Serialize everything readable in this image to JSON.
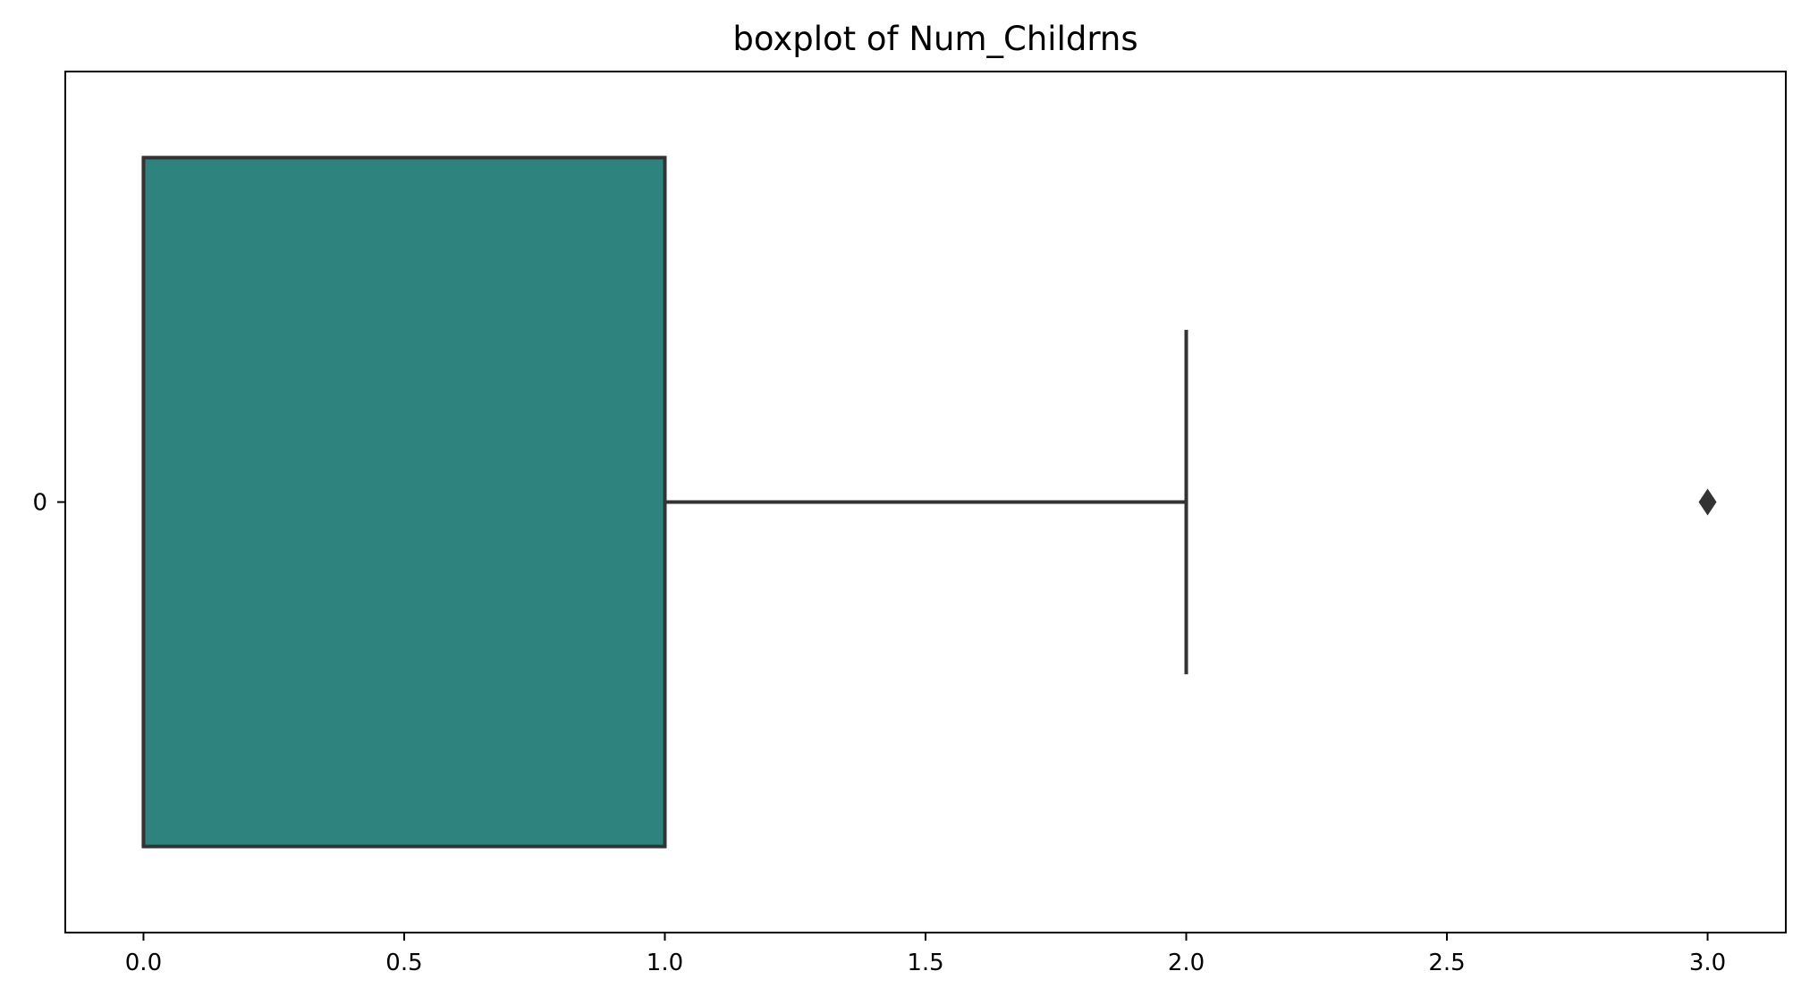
{
  "chart_data": {
    "type": "boxplot",
    "orientation": "horizontal",
    "title": "boxplot of Num_Childrns",
    "categories": [
      "0"
    ],
    "x_ticks": [
      "0.0",
      "0.5",
      "1.0",
      "1.5",
      "2.0",
      "2.5",
      "3.0"
    ],
    "x_tick_values": [
      0,
      0.5,
      1.0,
      1.5,
      2.0,
      2.5,
      3.0
    ],
    "xlim": [
      -0.15,
      3.15
    ],
    "boxes": [
      {
        "category": "0",
        "whisker_low": 0,
        "q1": 0,
        "median": 0,
        "q3": 1,
        "whisker_high": 2,
        "outliers": [
          3
        ]
      }
    ],
    "box_color": "#2e837e",
    "line_color": "#333333"
  }
}
